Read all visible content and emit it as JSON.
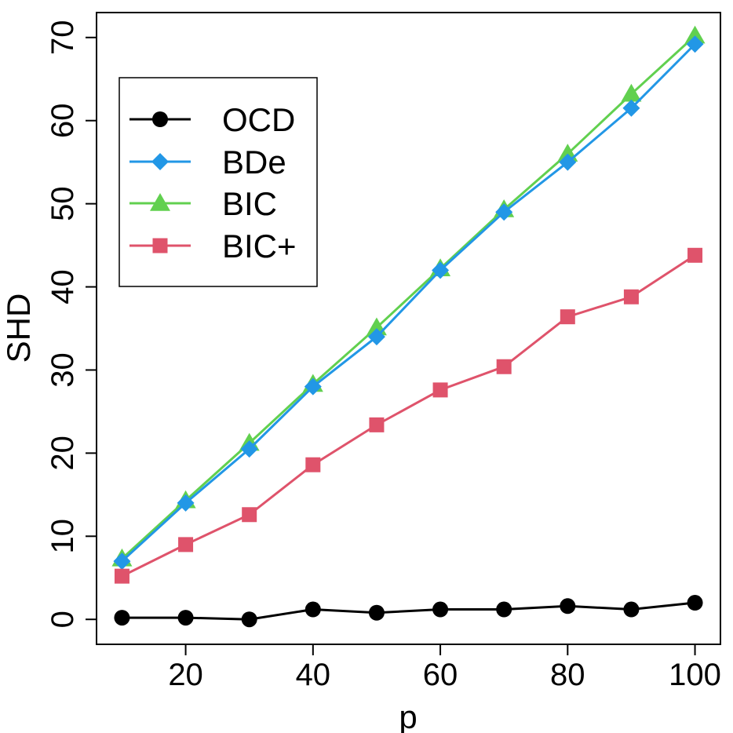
{
  "chart_data": {
    "type": "line",
    "xlabel": "p",
    "ylabel": "SHD",
    "x": [
      10,
      20,
      30,
      40,
      50,
      60,
      70,
      80,
      90,
      100
    ],
    "xlim": [
      6,
      104
    ],
    "ylim": [
      -3,
      73
    ],
    "xticks": [
      20,
      40,
      60,
      80,
      100
    ],
    "yticks": [
      0,
      10,
      20,
      30,
      40,
      50,
      60,
      70
    ],
    "grid": false,
    "legend_position": "top-left",
    "series": [
      {
        "name": "OCD",
        "color": "#000000",
        "marker": "circle",
        "values": [
          0.2,
          0.2,
          0.0,
          1.2,
          0.8,
          1.2,
          1.2,
          1.6,
          1.2,
          2.0
        ]
      },
      {
        "name": "BDe",
        "color": "#2297E6",
        "marker": "diamond",
        "values": [
          7.0,
          14.0,
          20.5,
          28.0,
          34.0,
          42.0,
          49.0,
          55.0,
          61.5,
          69.2
        ]
      },
      {
        "name": "BIC",
        "color": "#61D04F",
        "marker": "triangle",
        "values": [
          7.3,
          14.3,
          21.2,
          28.3,
          35.1,
          42.2,
          49.3,
          56.0,
          63.2,
          70.2
        ]
      },
      {
        "name": "BIC+",
        "color": "#DF536B",
        "marker": "square",
        "values": [
          5.2,
          9.0,
          12.6,
          18.6,
          23.4,
          27.6,
          30.4,
          36.4,
          38.8,
          43.8
        ]
      }
    ]
  }
}
